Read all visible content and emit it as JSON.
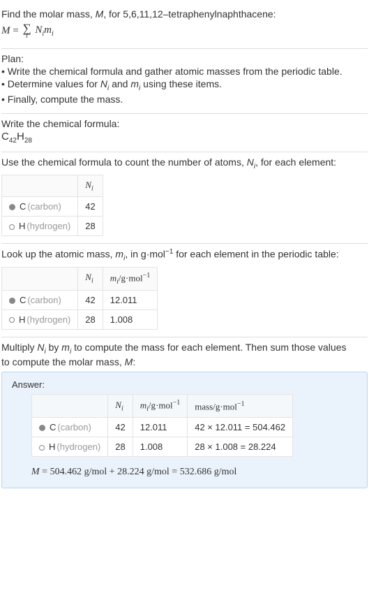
{
  "intro": {
    "line1_pre": "Find the molar mass, ",
    "line1_var": "M",
    "line1_post": ", for 5,6,11,12–tetraphenylnaphthacene:",
    "eq_lhs": "M",
    "eq_term1": "N",
    "eq_term2": "m",
    "eq_idx": "i"
  },
  "plan": {
    "title": "Plan:",
    "items": [
      "• Write the chemical formula and gather atomic masses from the periodic table.",
      "• Determine values for Nᵢ and mᵢ using these items.",
      "• Finally, compute the mass."
    ]
  },
  "step_formula": {
    "title": "Write the chemical formula:",
    "elem1": "C",
    "sub1": "42",
    "elem2": "H",
    "sub2": "28"
  },
  "step_count": {
    "text_pre": "Use the chemical formula to count the number of atoms, ",
    "text_var": "N",
    "text_idx": "i",
    "text_post": ", for each element:",
    "header_N": "N",
    "header_idx": "i",
    "rows": [
      {
        "sym": "C",
        "name": "(carbon)",
        "filled": true,
        "N": "42"
      },
      {
        "sym": "H",
        "name": "(hydrogen)",
        "filled": false,
        "N": "28"
      }
    ]
  },
  "step_mass": {
    "text_pre": "Look up the atomic mass, ",
    "text_var": "m",
    "text_idx": "i",
    "text_mid": ", in g·mol",
    "text_exp": "−1",
    "text_post": " for each element in the periodic table:",
    "header_N": "N",
    "header_N_idx": "i",
    "header_m": "m",
    "header_m_idx": "i",
    "header_unit_pre": "/g·mol",
    "header_unit_exp": "−1",
    "rows": [
      {
        "sym": "C",
        "name": "(carbon)",
        "filled": true,
        "N": "42",
        "m": "12.011"
      },
      {
        "sym": "H",
        "name": "(hydrogen)",
        "filled": false,
        "N": "28",
        "m": "1.008"
      }
    ]
  },
  "step_multiply": {
    "text_line1_a": "Multiply ",
    "text_N": "N",
    "text_idx": "i",
    "text_line1_b": " by ",
    "text_m": "m",
    "text_line1_c": " to compute the mass for each element. Then sum those values",
    "text_line2": "to compute the molar mass, ",
    "text_M": "M",
    "text_line2_end": ":"
  },
  "answer": {
    "label": "Answer:",
    "header_N": "N",
    "header_N_idx": "i",
    "header_m": "m",
    "header_m_idx": "i",
    "header_m_unit_pre": "/g·mol",
    "header_m_unit_exp": "−1",
    "header_mass_pre": "mass/g·mol",
    "header_mass_exp": "−1",
    "rows": [
      {
        "sym": "C",
        "name": "(carbon)",
        "filled": true,
        "N": "42",
        "m": "12.011",
        "calc": "42 × 12.011 = 504.462"
      },
      {
        "sym": "H",
        "name": "(hydrogen)",
        "filled": false,
        "N": "28",
        "m": "1.008",
        "calc": "28 × 1.008 = 28.224"
      }
    ],
    "final_var": "M",
    "final_eq": " = 504.462 g/mol + 28.224 g/mol = 532.686 g/mol"
  }
}
